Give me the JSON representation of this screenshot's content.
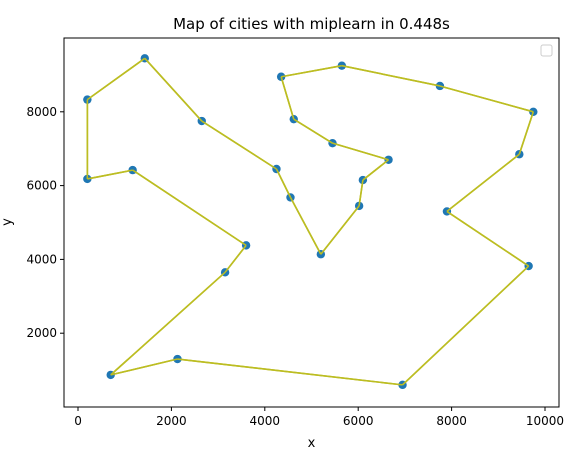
{
  "chart_data": {
    "type": "scatter",
    "title": "Map of cities with miplearn in 0.448s",
    "xlabel": "x",
    "ylabel": "y",
    "xlim": [
      -300,
      10300
    ],
    "ylim": [
      0,
      10000
    ],
    "xticks": [
      0,
      2000,
      4000,
      6000,
      8000,
      10000
    ],
    "yticks": [
      2000,
      4000,
      6000,
      8000
    ],
    "grid": false,
    "legend": "top-right, empty",
    "colors": {
      "points": "#1f77b4",
      "route": "#bcbd22"
    },
    "points": [
      {
        "x": 1430,
        "y": 9450
      },
      {
        "x": 2650,
        "y": 7750
      },
      {
        "x": 4250,
        "y": 6450
      },
      {
        "x": 4550,
        "y": 5680
      },
      {
        "x": 5200,
        "y": 4140
      },
      {
        "x": 6020,
        "y": 5450
      },
      {
        "x": 6100,
        "y": 6150
      },
      {
        "x": 6650,
        "y": 6700
      },
      {
        "x": 5450,
        "y": 7150
      },
      {
        "x": 4620,
        "y": 7800
      },
      {
        "x": 4350,
        "y": 8950
      },
      {
        "x": 5650,
        "y": 9250
      },
      {
        "x": 7750,
        "y": 8700
      },
      {
        "x": 9750,
        "y": 8000
      },
      {
        "x": 9450,
        "y": 6850
      },
      {
        "x": 7900,
        "y": 5300
      },
      {
        "x": 9650,
        "y": 3820
      },
      {
        "x": 6950,
        "y": 600
      },
      {
        "x": 2130,
        "y": 1300
      },
      {
        "x": 700,
        "y": 870
      },
      {
        "x": 3150,
        "y": 3650
      },
      {
        "x": 3600,
        "y": 4380
      },
      {
        "x": 1170,
        "y": 6420
      },
      {
        "x": 200,
        "y": 6180
      },
      {
        "x": 200,
        "y": 8330
      }
    ],
    "route_order": [
      0,
      1,
      2,
      3,
      4,
      5,
      6,
      7,
      8,
      9,
      10,
      11,
      12,
      13,
      14,
      15,
      16,
      17,
      18,
      19,
      20,
      21,
      22,
      23,
      24,
      0
    ]
  }
}
